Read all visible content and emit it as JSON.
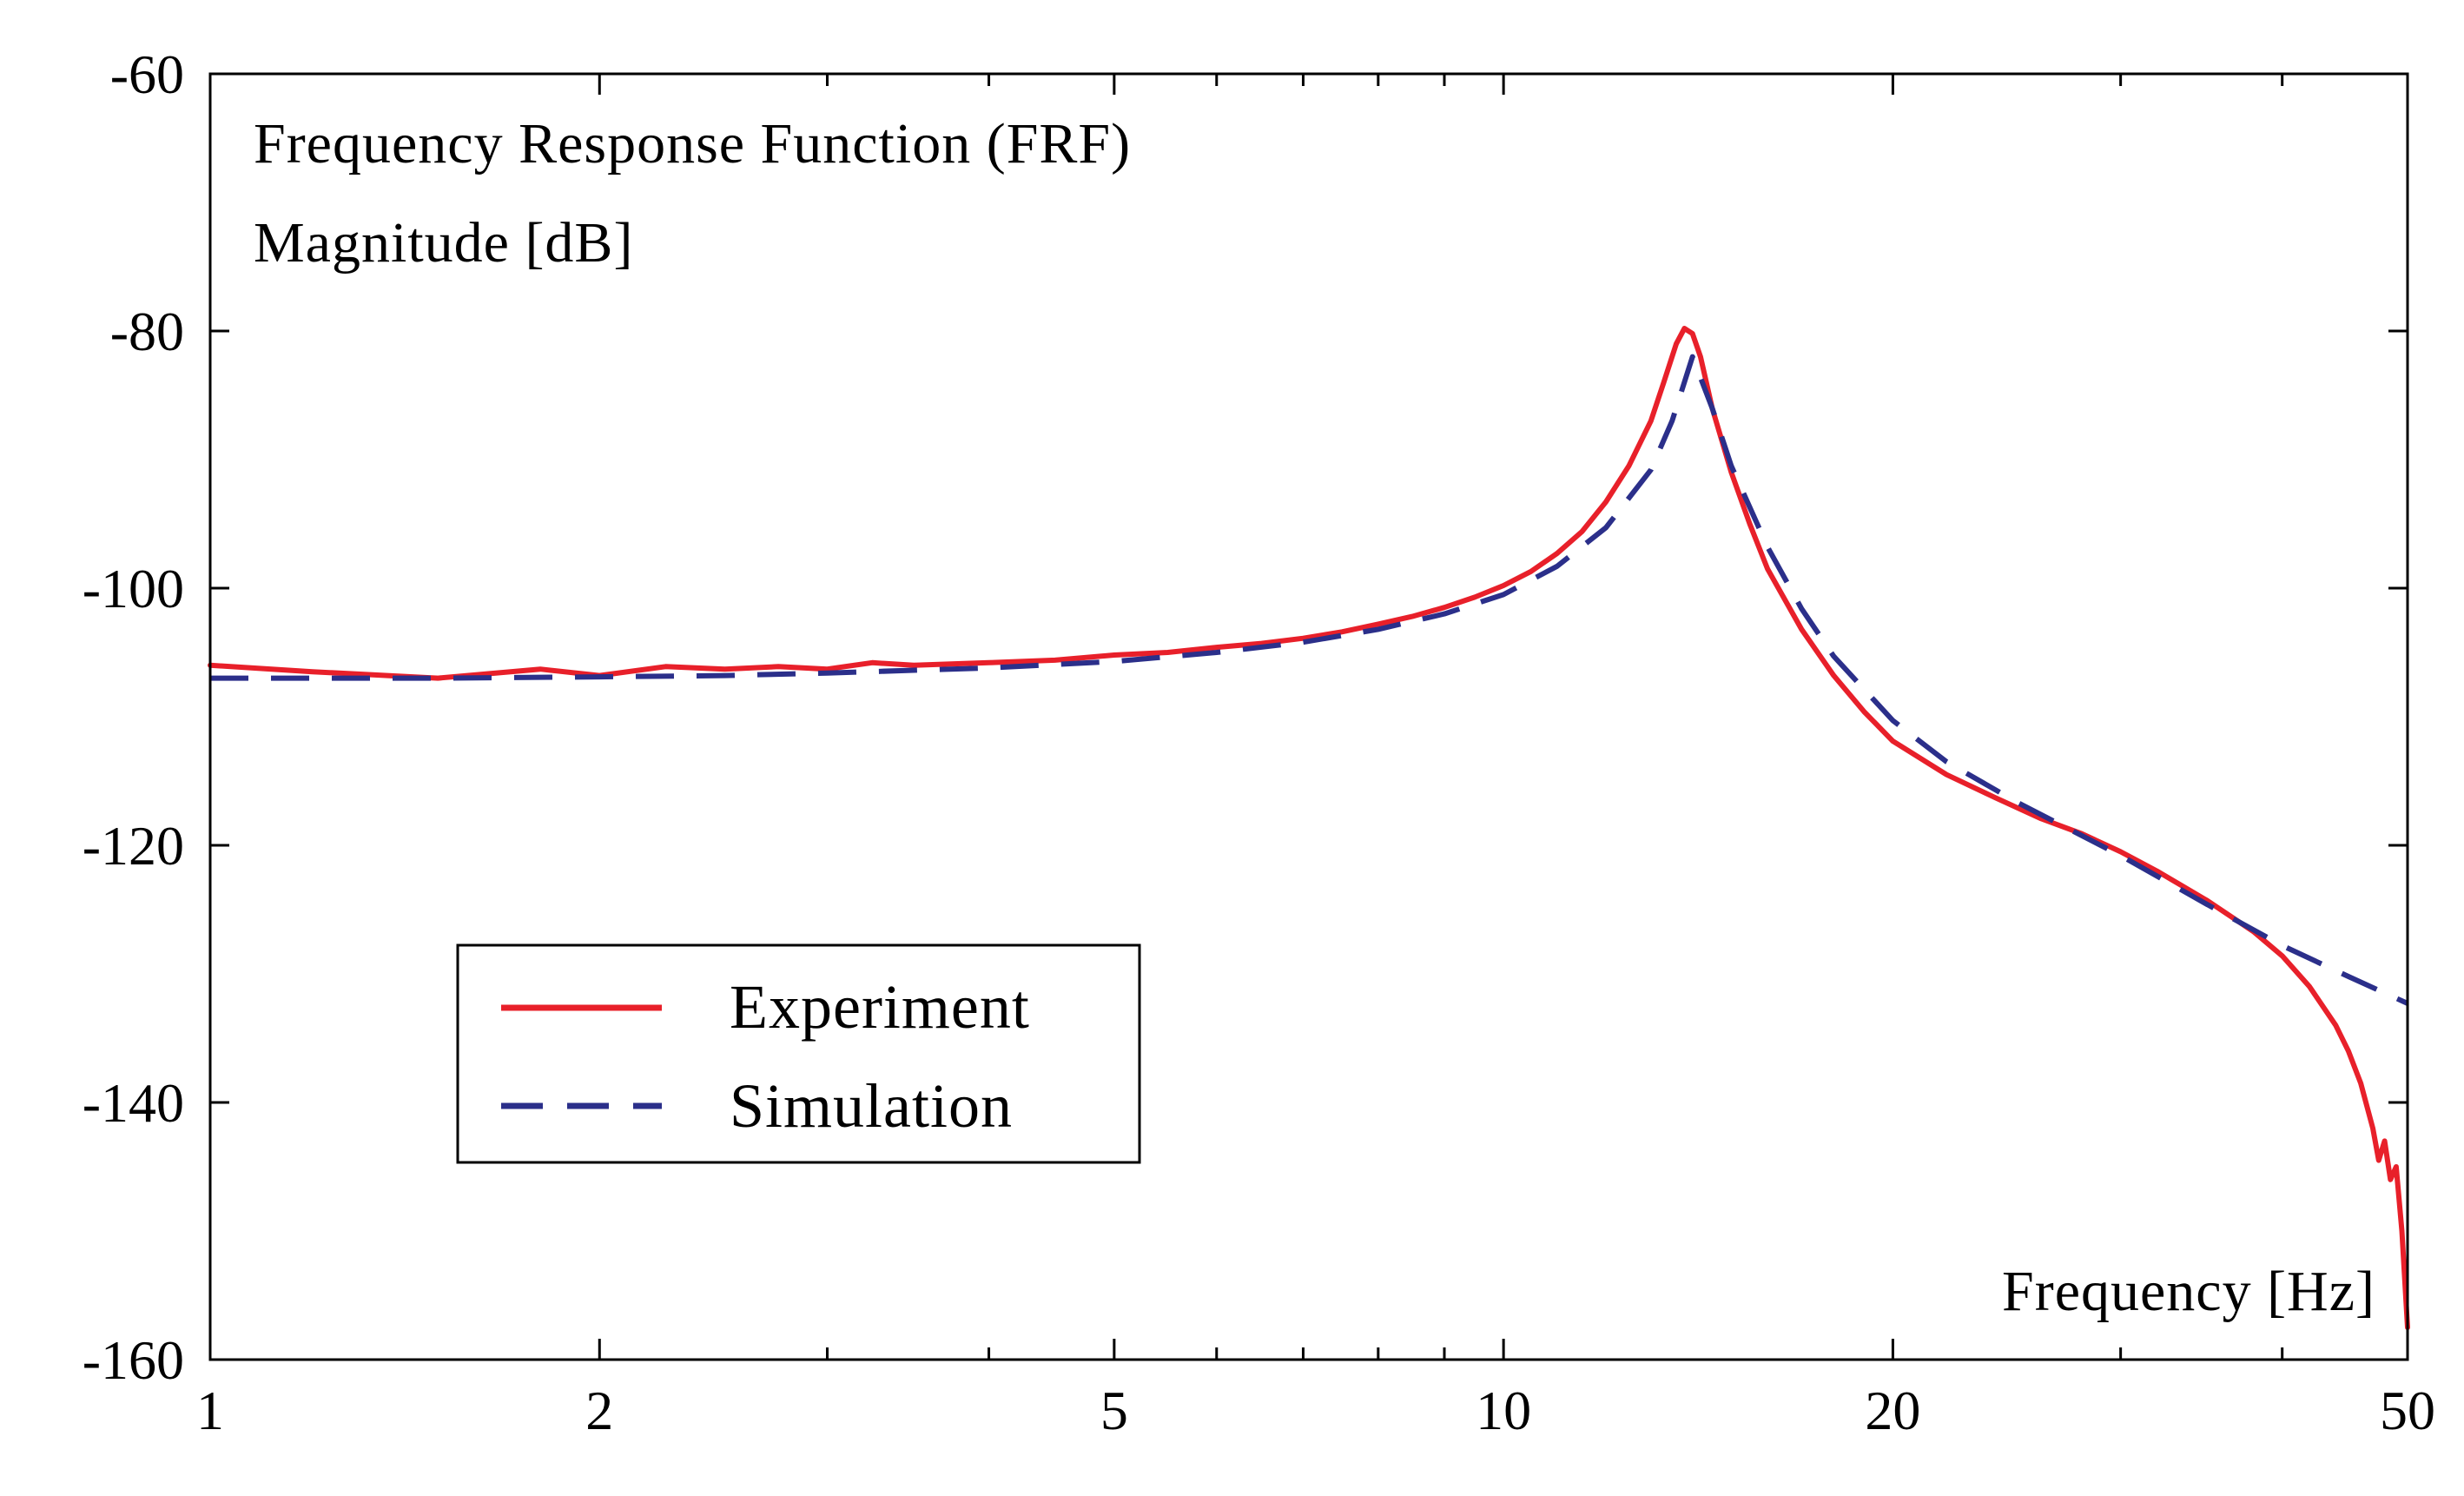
{
  "chart_data": {
    "type": "line",
    "title": "Frequency Response Function (FRF)",
    "ylabel": "Magnitude [dB]",
    "xlabel": "Frequency [Hz]",
    "xscale": "log",
    "xlim": [
      1,
      50
    ],
    "ylim": [
      -160,
      -60
    ],
    "x_ticks": [
      1,
      2,
      5,
      10,
      20,
      50
    ],
    "x_tick_labels": [
      "1",
      "2",
      "5",
      "10",
      "20",
      "50"
    ],
    "x_minor_ticks": [
      3,
      4,
      6,
      7,
      8,
      9,
      30,
      40
    ],
    "y_ticks": [
      -60,
      -80,
      -100,
      -120,
      -140,
      -160
    ],
    "y_tick_labels": [
      "-60",
      "-80",
      "-100",
      "-120",
      "-140",
      "-160"
    ],
    "legend": {
      "position": "lower-left",
      "entries": [
        "Experiment",
        "Simulation"
      ]
    },
    "series": [
      {
        "name": "Experiment",
        "color": "#e8202a",
        "style": "solid",
        "x": [
          1,
          1.2,
          1.5,
          1.8,
          2,
          2.25,
          2.5,
          2.75,
          3,
          3.25,
          3.5,
          4,
          4.5,
          5,
          5.5,
          6,
          6.5,
          7,
          7.5,
          8,
          8.5,
          9,
          9.5,
          10,
          10.5,
          11,
          11.5,
          12,
          12.5,
          13,
          13.3,
          13.6,
          13.8,
          14,
          14.2,
          14.5,
          15,
          15.5,
          16,
          17,
          18,
          19,
          20,
          22,
          24,
          26,
          28,
          30,
          32,
          35,
          38,
          40,
          42,
          44,
          45,
          46,
          47,
          47.5,
          48,
          48.5,
          49,
          49.5,
          50
        ],
        "y": [
          -106,
          -106.5,
          -107,
          -106.3,
          -106.8,
          -106.1,
          -106.3,
          -106.1,
          -106.3,
          -105.8,
          -106,
          -105.8,
          -105.6,
          -105.2,
          -105,
          -104.6,
          -104.3,
          -103.9,
          -103.4,
          -102.8,
          -102.2,
          -101.5,
          -100.7,
          -99.8,
          -98.7,
          -97.3,
          -95.6,
          -93.3,
          -90.5,
          -87,
          -84,
          -81,
          -79.8,
          -80.2,
          -82,
          -86,
          -91,
          -95,
          -98.5,
          -103.2,
          -106.8,
          -109.6,
          -111.9,
          -114.5,
          -116.3,
          -117.9,
          -119.1,
          -120.5,
          -122,
          -124.3,
          -126.7,
          -128.6,
          -131,
          -134,
          -136,
          -138.5,
          -142,
          -144.5,
          -143,
          -146,
          -145,
          -150,
          -157.5
        ]
      },
      {
        "name": "Simulation",
        "color": "#2b2f8a",
        "style": "dashed",
        "x": [
          1,
          1.5,
          2,
          2.5,
          3,
          4,
          5,
          6,
          7,
          8,
          9,
          10,
          11,
          12,
          13,
          13.5,
          14,
          14.5,
          15,
          16,
          17,
          18,
          20,
          22,
          25,
          30,
          35,
          40,
          45,
          50
        ],
        "y": [
          -107,
          -107,
          -106.9,
          -106.8,
          -106.6,
          -106.2,
          -105.7,
          -105,
          -104.2,
          -103.2,
          -102,
          -100.5,
          -98.3,
          -95.3,
          -90.8,
          -87,
          -82,
          -86,
          -90.5,
          -96.8,
          -101.6,
          -105.3,
          -110.3,
          -113.5,
          -116.7,
          -120.8,
          -124.6,
          -127.8,
          -130.2,
          -132.3
        ]
      }
    ]
  }
}
